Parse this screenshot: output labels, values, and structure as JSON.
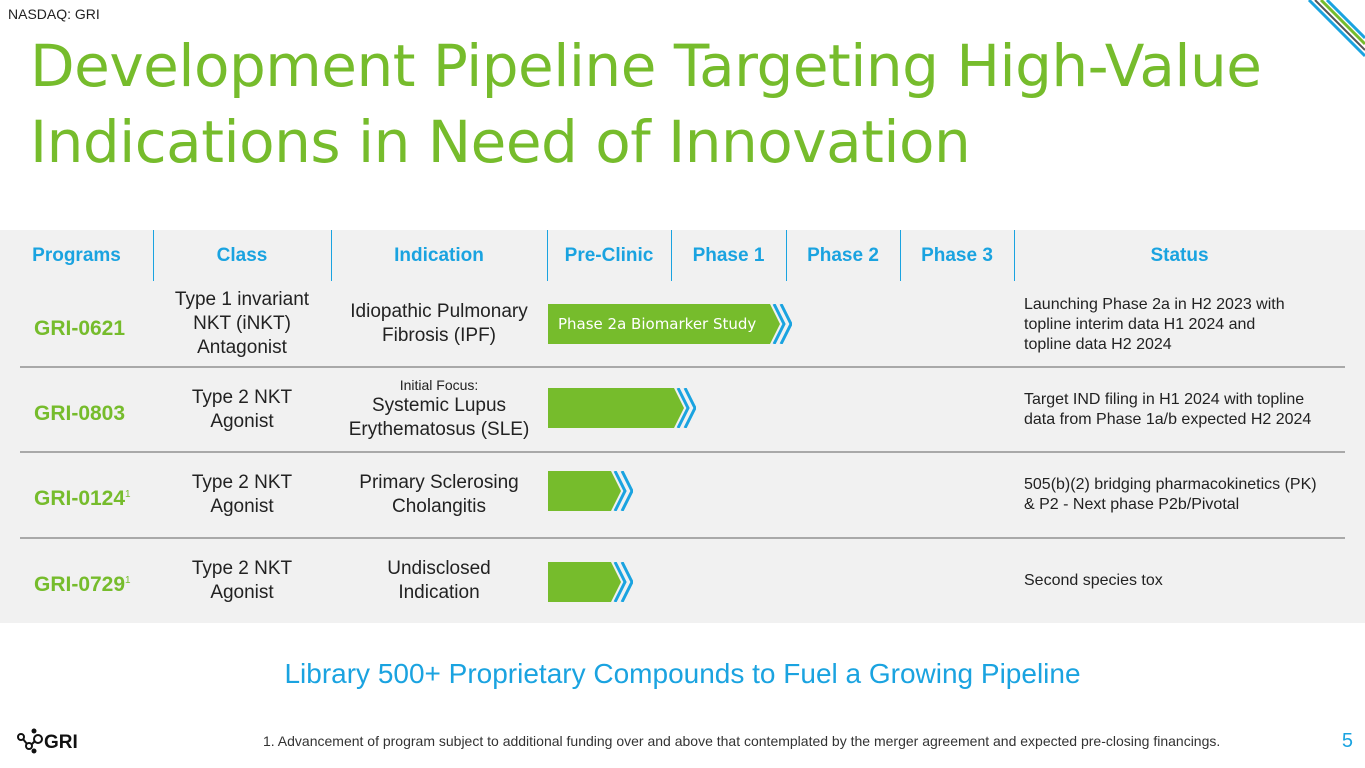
{
  "ticker": "NASDAQ: GRI",
  "title": {
    "line1": "Development Pipeline Targeting High-Value",
    "line2": "Indications in Need of Innovation"
  },
  "table": {
    "headers": [
      "Programs",
      "Class",
      "Indication",
      "Pre-Clinic",
      "Phase 1",
      "Phase 2",
      "Phase 3",
      "Status"
    ],
    "rows": [
      {
        "program": "GRI-0621",
        "footnote_mark": "",
        "class_lines": [
          "Type 1 invariant",
          "NKT (iNKT)",
          "Antagonist"
        ],
        "indication_pre": "",
        "indication_lines": [
          "Idiopathic Pulmonary",
          "Fibrosis (IPF)"
        ],
        "bar_label": "Phase 2a Biomarker Study",
        "status_lines": [
          "Launching Phase 2a in H2 2023 with",
          "topline interim data H1 2024 and",
          "topline data H2 2024"
        ]
      },
      {
        "program": "GRI-0803",
        "footnote_mark": "",
        "class_lines": [
          "Type 2 NKT",
          "Agonist"
        ],
        "indication_pre": "Initial Focus:",
        "indication_lines": [
          "Systemic Lupus",
          "Erythematosus (SLE)"
        ],
        "bar_label": "",
        "status_lines": [
          "Target IND filing in H1 2024 with topline",
          "data from Phase 1a/b expected H2 2024"
        ]
      },
      {
        "program": "GRI-0124",
        "footnote_mark": "1",
        "class_lines": [
          "Type 2 NKT",
          "Agonist"
        ],
        "indication_pre": "",
        "indication_lines": [
          "Primary Sclerosing",
          "Cholangitis"
        ],
        "bar_label": "",
        "status_lines": [
          "505(b)(2) bridging pharmacokinetics (PK)",
          "& P2 - Next phase P2b/Pivotal"
        ]
      },
      {
        "program": "GRI-0729",
        "footnote_mark": "1",
        "class_lines": [
          "Type 2 NKT",
          "Agonist"
        ],
        "indication_pre": "",
        "indication_lines": [
          "Undisclosed",
          "Indication"
        ],
        "bar_label": "",
        "status_lines": [
          "Second species tox"
        ]
      }
    ]
  },
  "tagline": "Library 500+ Proprietary Compounds to Fuel a Growing Pipeline",
  "logo_text": "GRI",
  "footnote": "1.    Advancement of program subject to additional funding over and above that contemplated by the merger agreement and expected pre-closing financings.",
  "page_number": "5",
  "colors": {
    "title_green": "#76bc2c",
    "header_blue": "#1aa3e0",
    "bar_green": "#76bc2c",
    "chevron_blue": "#1aa3e0",
    "table_bg": "#f1f1f1"
  }
}
